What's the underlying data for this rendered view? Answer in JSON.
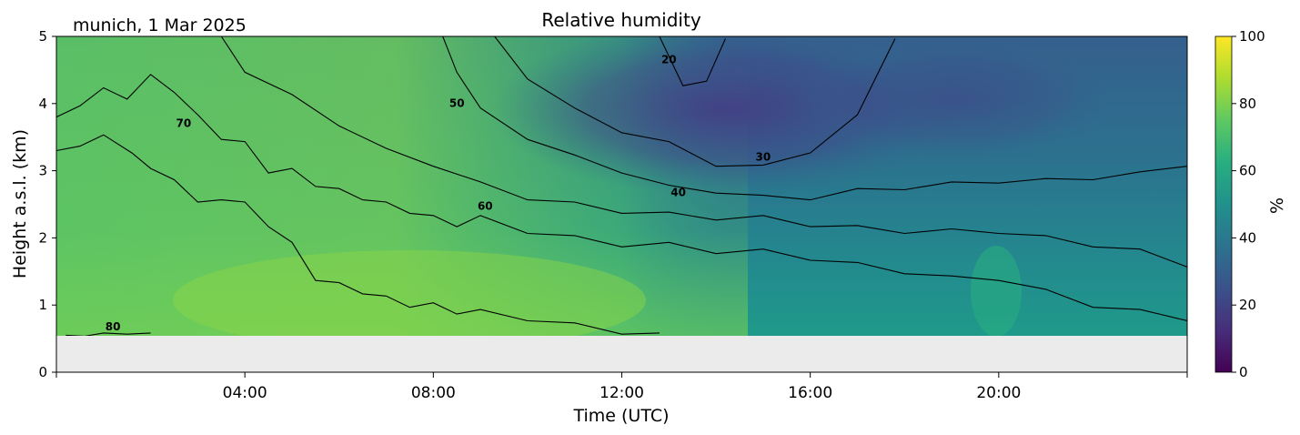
{
  "chart_data": {
    "type": "heatmap",
    "title": "Relative humidity",
    "subtitle": "munich, 1 Mar 2025",
    "xlabel": "Time (UTC)",
    "ylabel": "Height a.s.l. (km)",
    "xlim": [
      "00:00",
      "24:00"
    ],
    "ylim": [
      0,
      5
    ],
    "x_ticks": [
      "04:00",
      "08:00",
      "12:00",
      "16:00",
      "20:00"
    ],
    "y_ticks": [
      "0",
      "1",
      "2",
      "3",
      "4",
      "5"
    ],
    "data_lower_height_km": 0.55,
    "colorbar": {
      "label": "%",
      "colormap": "viridis",
      "range": [
        0,
        100
      ],
      "ticks": [
        "0",
        "20",
        "40",
        "60",
        "80",
        "100"
      ]
    },
    "contour_levels": [
      "20",
      "30",
      "40",
      "50",
      "60",
      "70",
      "80"
    ],
    "colors": {
      "no_data": "#ebebeb",
      "contour": "#000000"
    },
    "contour_paths": [
      {
        "level": 80,
        "points": [
          [
            0.2,
            0.55
          ],
          [
            0.6,
            0.57
          ],
          [
            1.0,
            0.55
          ],
          [
            1.5,
            0.6
          ],
          [
            2.0,
            0.55
          ]
        ]
      },
      {
        "level": 70,
        "points": [
          [
            0.0,
            3.3
          ],
          [
            0.5,
            3.4
          ],
          [
            1.0,
            3.5
          ],
          [
            1.6,
            3.3
          ],
          [
            2.0,
            3.0
          ],
          [
            2.5,
            2.9
          ],
          [
            3.0,
            2.5
          ],
          [
            3.5,
            2.6
          ],
          [
            4.0,
            2.5
          ],
          [
            4.5,
            2.2
          ],
          [
            5.0,
            1.9
          ],
          [
            5.5,
            1.4
          ],
          [
            6.0,
            1.3
          ],
          [
            6.5,
            1.2
          ],
          [
            7.0,
            1.1
          ],
          [
            7.5,
            1.0
          ],
          [
            8.0,
            1.0
          ],
          [
            8.5,
            0.9
          ],
          [
            9.0,
            0.9
          ],
          [
            10.0,
            0.8
          ],
          [
            11.0,
            0.7
          ],
          [
            12.0,
            0.6
          ],
          [
            12.8,
            0.55
          ]
        ]
      },
      {
        "level": 60,
        "points": [
          [
            0.0,
            3.8
          ],
          [
            0.5,
            4.0
          ],
          [
            1.0,
            4.2
          ],
          [
            1.5,
            4.1
          ],
          [
            2.0,
            4.4
          ],
          [
            2.5,
            4.2
          ],
          [
            3.0,
            3.8
          ],
          [
            3.5,
            3.5
          ],
          [
            4.0,
            3.4
          ],
          [
            4.5,
            3.0
          ],
          [
            5.0,
            3.0
          ],
          [
            5.5,
            2.8
          ],
          [
            6.0,
            2.7
          ],
          [
            6.5,
            2.6
          ],
          [
            7.0,
            2.5
          ],
          [
            7.5,
            2.4
          ],
          [
            8.0,
            2.3
          ],
          [
            8.5,
            2.2
          ],
          [
            9.0,
            2.3
          ],
          [
            10.0,
            2.1
          ],
          [
            11.0,
            2.0
          ],
          [
            12.0,
            1.9
          ],
          [
            13.0,
            1.9
          ],
          [
            14.0,
            1.8
          ],
          [
            15.0,
            1.8
          ],
          [
            16.0,
            1.7
          ],
          [
            17.0,
            1.6
          ],
          [
            18.0,
            1.5
          ],
          [
            19.0,
            1.4
          ],
          [
            20.0,
            1.4
          ],
          [
            21.0,
            1.2
          ],
          [
            22.0,
            1.0
          ],
          [
            23.0,
            0.9
          ],
          [
            24.0,
            0.8
          ]
        ]
      },
      {
        "level": 50,
        "points": [
          [
            3.5,
            5.0
          ],
          [
            4.0,
            4.5
          ],
          [
            5.0,
            4.1
          ],
          [
            6.0,
            3.7
          ],
          [
            7.0,
            3.3
          ],
          [
            8.0,
            3.1
          ],
          [
            9.0,
            2.8
          ],
          [
            10.0,
            2.6
          ],
          [
            11.0,
            2.5
          ],
          [
            12.0,
            2.4
          ],
          [
            13.0,
            2.35
          ],
          [
            14.0,
            2.3
          ],
          [
            15.0,
            2.3
          ],
          [
            16.0,
            2.2
          ],
          [
            17.0,
            2.15
          ],
          [
            18.0,
            2.1
          ],
          [
            19.0,
            2.1
          ],
          [
            20.0,
            2.1
          ],
          [
            21.0,
            2.0
          ],
          [
            22.0,
            1.9
          ],
          [
            23.0,
            1.8
          ],
          [
            24.0,
            1.6
          ]
        ]
      },
      {
        "level": 40,
        "points": [
          [
            8.2,
            5.0
          ],
          [
            8.5,
            4.5
          ],
          [
            9.0,
            3.9
          ],
          [
            10.0,
            3.5
          ],
          [
            11.0,
            3.2
          ],
          [
            12.0,
            3.0
          ],
          [
            13.0,
            2.75
          ],
          [
            14.0,
            2.7
          ],
          [
            15.0,
            2.6
          ],
          [
            16.0,
            2.6
          ],
          [
            17.0,
            2.7
          ],
          [
            18.0,
            2.75
          ],
          [
            19.0,
            2.8
          ],
          [
            20.0,
            2.85
          ],
          [
            21.0,
            2.85
          ],
          [
            22.0,
            2.9
          ],
          [
            23.0,
            2.95
          ],
          [
            24.0,
            3.1
          ]
        ]
      },
      {
        "level": 30,
        "points": [
          [
            9.3,
            5.0
          ],
          [
            10.0,
            4.4
          ],
          [
            11.0,
            3.9
          ],
          [
            12.0,
            3.6
          ],
          [
            13.0,
            3.4
          ],
          [
            14.0,
            3.1
          ],
          [
            15.0,
            3.05
          ],
          [
            16.0,
            3.3
          ],
          [
            17.0,
            3.8
          ],
          [
            17.8,
            5.0
          ]
        ]
      },
      {
        "level": 20,
        "points": [
          [
            12.8,
            5.0
          ],
          [
            13.3,
            4.3
          ],
          [
            13.8,
            4.3
          ],
          [
            14.2,
            5.0
          ]
        ]
      }
    ],
    "contour_labels": [
      {
        "text": "80",
        "x": 1.2,
        "y": 0.62
      },
      {
        "text": "70",
        "x": 2.7,
        "y": 3.65
      },
      {
        "text": "60",
        "x": 9.1,
        "y": 2.42
      },
      {
        "text": "50",
        "x": 8.5,
        "y": 3.95
      },
      {
        "text": "40",
        "x": 13.2,
        "y": 2.62
      },
      {
        "text": "30",
        "x": 15.0,
        "y": 3.15
      },
      {
        "text": "20",
        "x": 13.0,
        "y": 4.6
      }
    ]
  }
}
